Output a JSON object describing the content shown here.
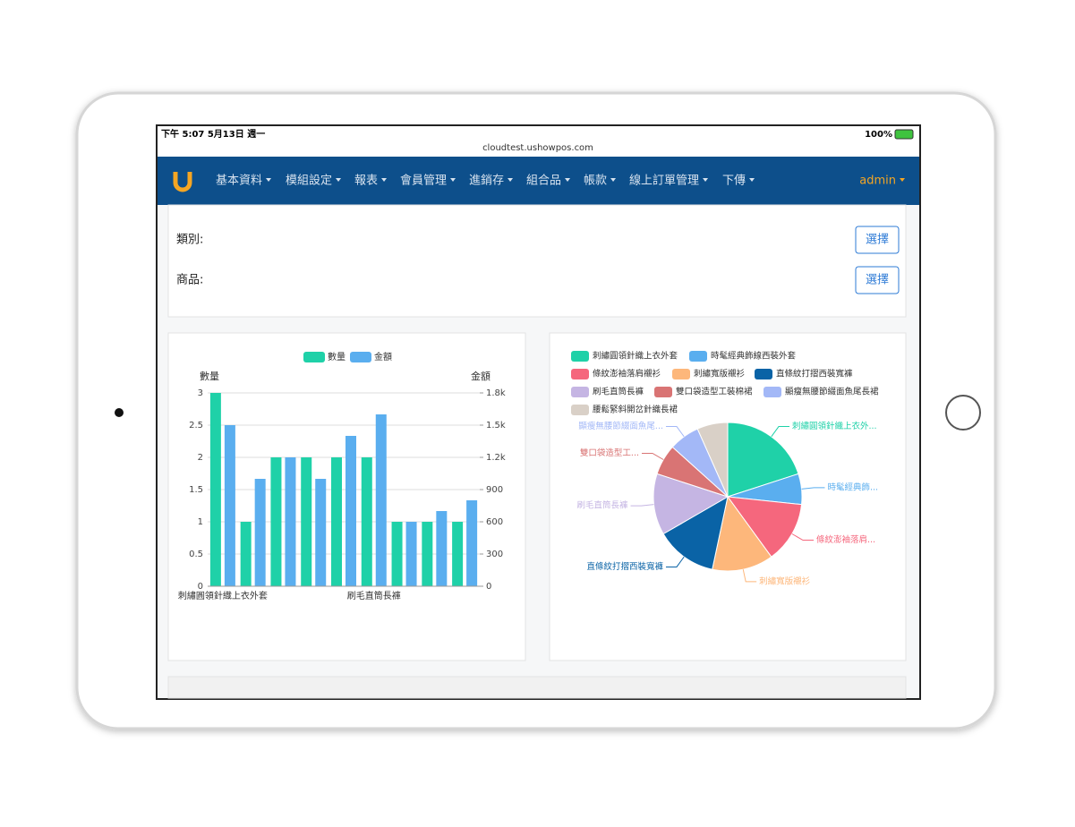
{
  "status_bar": {
    "time": "下午 5:07   5月13日 週一",
    "url": "cloudtest.ushowpos.com",
    "battery": "100%"
  },
  "nav": {
    "items": [
      "基本資料",
      "模組設定",
      "報表",
      "會員管理",
      "進銷存",
      "組合品",
      "帳款",
      "線上訂單管理",
      "下傳"
    ],
    "user": "admin"
  },
  "filters": [
    {
      "label": "類別:",
      "button": "選擇"
    },
    {
      "label": "商品:",
      "button": "選擇"
    }
  ],
  "chart_data": [
    {
      "type": "bar",
      "categories": [
        "刺繡圓領針織上衣外套",
        null,
        null,
        null,
        null,
        "刷毛直筒長褲",
        null,
        null,
        null
      ],
      "y_label": "數量",
      "y2_label": "金額",
      "series": [
        {
          "name": "數量",
          "color": "#1fd1a8",
          "values": [
            3,
            1,
            2,
            2,
            2,
            2,
            1,
            1,
            1
          ]
        },
        {
          "name": "金額",
          "color": "#5aaeef",
          "axis": "y2",
          "values": [
            1500,
            1000,
            1200,
            1000,
            1400,
            1600,
            600,
            700,
            800
          ]
        }
      ],
      "ylim": [
        0,
        3
      ],
      "yticks": [
        0,
        0.5,
        1,
        1.5,
        2,
        2.5,
        3
      ],
      "y2lim": [
        0,
        1800
      ],
      "y2ticks": [
        0,
        300,
        600,
        900,
        {
          "value": 1200,
          "label": "1.2k"
        },
        {
          "value": 1500,
          "label": "1.5k"
        },
        {
          "value": 1800,
          "label": "1.8k"
        }
      ],
      "grid": true,
      "legend": "top"
    },
    {
      "type": "pie",
      "categories": [
        "刺繡圓領針織上衣外套",
        "時髦經典飾線西裝外套",
        "條紋澎袖落肩襯衫",
        "刺繡寬版襯衫",
        "直條紋打摺西裝寬褲",
        "刷毛直筒長褲",
        "雙口袋造型工裝棉裙",
        "顯瘦無腰節綴面魚尾長裙",
        "腰鬆緊斜開岔針織長裙"
      ],
      "values": [
        3,
        1,
        2,
        2,
        2,
        2,
        1,
        1,
        1
      ],
      "slice_labels": [
        "刺繡圓領針織上衣外...",
        "時髦經典飾...",
        "條紋澎袖落肩...",
        "刺繡寬版襯衫",
        "直條紋打摺西裝寬褲",
        "刷毛直筒長褲",
        "雙口袋造型工...",
        "顯瘦無腰節綴面魚尾...",
        null
      ],
      "colors": [
        "#1fd1a8",
        "#5aaeef",
        "#f5677d",
        "#fdb77b",
        "#0a63a6",
        "#c5b5e3",
        "#d97474",
        "#a3b8f7",
        "#d9d0c7"
      ],
      "legend": "top"
    }
  ]
}
